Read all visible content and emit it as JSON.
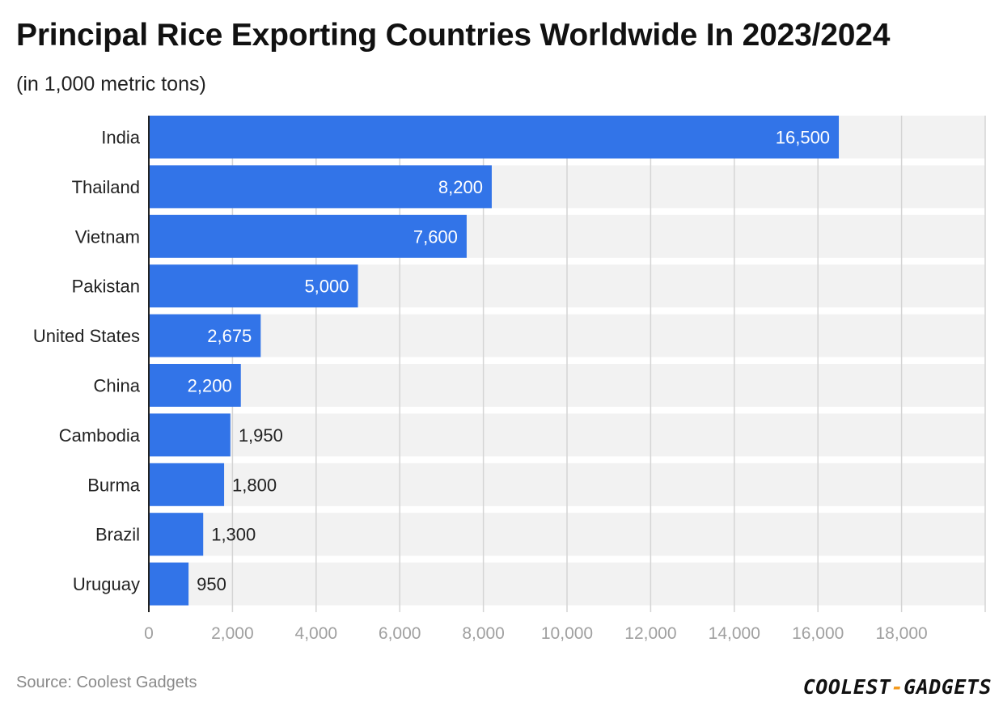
{
  "title": "Principal Rice Exporting Countries Worldwide In 2023/2024",
  "subtitle": "(in 1,000 metric tons)",
  "source": "Source: Coolest Gadgets",
  "logo": {
    "part1": "COOLEST",
    "dash": "-",
    "part2": "GADGETS"
  },
  "colors": {
    "bar": "#3274e8",
    "band": "#f2f2f2",
    "grid": "#d4d4d4",
    "axis": "#222222",
    "tick": "#a0a0a0"
  },
  "chart_data": {
    "type": "bar",
    "orientation": "horizontal",
    "categories": [
      "India",
      "Thailand",
      "Vietnam",
      "Pakistan",
      "United States",
      "China",
      "Cambodia",
      "Burma",
      "Brazil",
      "Uruguay"
    ],
    "values": [
      16500,
      8200,
      7600,
      5000,
      2675,
      2200,
      1950,
      1800,
      1300,
      950
    ],
    "value_labels": [
      "16,500",
      "8,200",
      "7,600",
      "5,000",
      "2,675",
      "2,200",
      "1,950",
      "1,800",
      "1,300",
      "950"
    ],
    "xlim": [
      0,
      20000
    ],
    "xticks": [
      0,
      2000,
      4000,
      6000,
      8000,
      10000,
      12000,
      14000,
      16000,
      18000
    ],
    "xtick_labels": [
      "0",
      "2,000",
      "4,000",
      "6,000",
      "8,000",
      "10,000",
      "12,000",
      "14,000",
      "16,000",
      "18,000"
    ],
    "grid": true,
    "legend": "none"
  }
}
